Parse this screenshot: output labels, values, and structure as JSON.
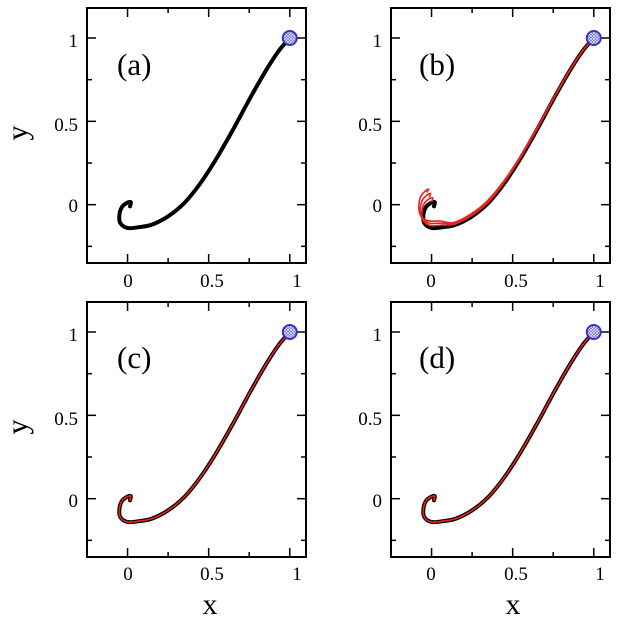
{
  "chart_data": [
    {
      "panel": "(a)",
      "type": "line",
      "xlim": [
        -0.25,
        1.1
      ],
      "ylim": [
        -0.35,
        1.18
      ],
      "xticks": [
        "0",
        "0.5",
        "1"
      ],
      "yticks": [
        "0",
        "0.5",
        "1"
      ],
      "xlabel": "",
      "ylabel": "y",
      "target": {
        "x": 1,
        "y": 1,
        "color": "#3333cc"
      },
      "series": [
        {
          "name": "black trajectory",
          "color": "#000000",
          "variant": 0
        }
      ]
    },
    {
      "panel": "(b)",
      "type": "line",
      "xlim": [
        -0.25,
        1.1
      ],
      "ylim": [
        -0.35,
        1.18
      ],
      "xticks": [
        "0",
        "0.5",
        "1"
      ],
      "yticks": [
        "0",
        "0.5",
        "1"
      ],
      "xlabel": "",
      "ylabel": "",
      "target": {
        "x": 1,
        "y": 1,
        "color": "#3333cc"
      },
      "series": [
        {
          "name": "black trajectory",
          "color": "#000000",
          "variant": 0
        },
        {
          "name": "red trajectory 1",
          "color": "#e8221c",
          "variant": 1
        },
        {
          "name": "red trajectory 2",
          "color": "#e8221c",
          "variant": 2
        },
        {
          "name": "red trajectory 3",
          "color": "#e8221c",
          "variant": 3
        }
      ]
    },
    {
      "panel": "(c)",
      "type": "line",
      "xlim": [
        -0.25,
        1.1
      ],
      "ylim": [
        -0.35,
        1.18
      ],
      "xticks": [
        "0",
        "0.5",
        "1"
      ],
      "yticks": [
        "0",
        "0.5",
        "1"
      ],
      "xlabel": "x",
      "ylabel": "y",
      "target": {
        "x": 1,
        "y": 1,
        "color": "#3333cc"
      },
      "series": [
        {
          "name": "black trajectory",
          "color": "#000000",
          "variant": 0
        },
        {
          "name": "red trajectory",
          "color": "#e8221c",
          "variant": 0
        }
      ]
    },
    {
      "panel": "(d)",
      "type": "line",
      "xlim": [
        -0.25,
        1.1
      ],
      "ylim": [
        -0.35,
        1.18
      ],
      "xticks": [
        "0",
        "0.5",
        "1"
      ],
      "yticks": [
        "0",
        "0.5",
        "1"
      ],
      "xlabel": "x",
      "ylabel": "",
      "target": {
        "x": 1,
        "y": 1,
        "color": "#3333cc"
      },
      "series": [
        {
          "name": "black trajectory",
          "color": "#000000",
          "variant": 0
        },
        {
          "name": "red trajectory",
          "color": "#e8221c",
          "variant": 0
        }
      ]
    }
  ]
}
